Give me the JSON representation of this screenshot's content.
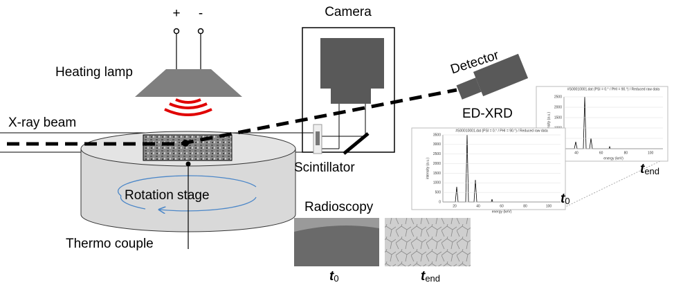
{
  "labels": {
    "plus": "+",
    "minus": "-",
    "heating_lamp": "Heating lamp",
    "camera": "Camera",
    "detector": "Detector",
    "ed_xrd": "ED-XRD",
    "xray_beam": "X-ray beam",
    "scintillator": "Scintillator",
    "rotation_stage": "Rotation stage",
    "thermo_couple": "Thermo couple",
    "radioscopy": "Radioscopy"
  },
  "time_labels": {
    "t0": {
      "base": "t",
      "sub": "0"
    },
    "tend": {
      "base": "t",
      "sub": "end"
    }
  },
  "spectra": [
    {
      "title": "#S00010001.dat (PSI = 0.° / PHI = 90.°) / Reduced raw data",
      "x_label": "energy (keV)",
      "y_label": "intensity (a.u.)",
      "yticks": [
        "0",
        "500",
        "1000",
        "1500",
        "2000",
        "2500"
      ],
      "xticks": [
        "40",
        "60",
        "80",
        "100"
      ]
    },
    {
      "title": "#S00010001.dat (PSI = 0.° / PHI = 90.°) / Reduced raw data",
      "x_label": "energy (keV)",
      "y_label": "intensity (a.u.)",
      "yticks": [
        "0",
        "500",
        "1000",
        "1500",
        "2000",
        "2500",
        "3000",
        "3500"
      ],
      "xticks": [
        "20",
        "40",
        "60",
        "80",
        "100"
      ]
    }
  ]
}
